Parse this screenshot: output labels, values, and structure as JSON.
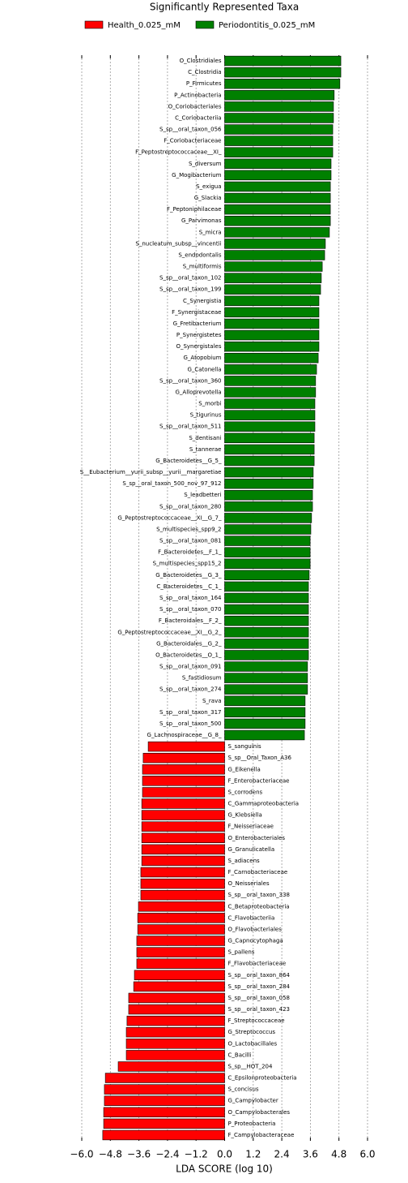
{
  "chart_data": {
    "type": "barh",
    "title": "Significantly Represented Taxa",
    "xlabel": "LDA SCORE (log 10)",
    "xlim": [
      -6,
      6
    ],
    "xticks": [
      {
        "value": -6,
        "label": "−6.0"
      },
      {
        "value": -4.8,
        "label": "−4.8"
      },
      {
        "value": -3.6,
        "label": "−3.6"
      },
      {
        "value": -2.4,
        "label": "−2.4"
      },
      {
        "value": -1.2,
        "label": "−1.2"
      },
      {
        "value": 0,
        "label": "0.0"
      },
      1.2,
      2.4,
      3.6,
      4.8,
      {
        "value": 6,
        "label": "6.0"
      }
    ],
    "grid": true,
    "categories": [
      "O_Clostridiales",
      "C_Clostridia",
      "P_Firmicutes",
      "P_Actinobacteria",
      "O_Coriobacteriales",
      "C_Coriobacteriia",
      "S_sp__oral_taxon_056",
      "F_Coriobacteriaceae",
      "F_Peptostreptococcaceae__XI_",
      "S_diversum",
      "G_Mogibacterium",
      "S_exigua",
      "G_Slackia",
      "F_Peptoniphilaceae",
      "G_Parvimonas",
      "S_micra",
      "S_nucleatum_subsp__vincentii",
      "S_endodontalis",
      "S_multiformis",
      "S_sp__oral_taxon_102",
      "S_sp__oral_taxon_199",
      "C_Synergistia",
      "F_Synergistaceae",
      "G_Fretibacterium",
      "P_Synergistetes",
      "O_Synergistales",
      "G_Atopobium",
      "G_Catonella",
      "S_sp__oral_taxon_360",
      "G_Alloprevotella",
      "S_morbi",
      "S_tigurinus",
      "S_sp__oral_taxon_511",
      "S_dentisani",
      "S_tannerae",
      "G_Bacteroidetes__G_5_",
      "S__Eubacterium__yurii_subsp__yurii__margaretiae",
      "S_sp__oral_taxon_500_nov_97_912",
      "S_leadbetteri",
      "S_sp__oral_taxon_280",
      "G_Peptostreptococcaceae__XI__G_7_",
      "S_multispecies_spp9_2",
      "S_sp__oral_taxon_081",
      "F_Bacteroidetes__F_1_",
      "S_multispecies_spp15_2",
      "G_Bacteroidetes__G_3_",
      "C_Bacteroidetes__C_1_",
      "S_sp__oral_taxon_164",
      "S_sp__oral_taxon_070",
      "F_Bacteroidales__F_2_",
      "G_Peptostreptococcaceae__XI__G_2_",
      "G_Bacteroidales__G_2_",
      "O_Bacteroidetes__O_1_",
      "S_sp__oral_taxon_091",
      "S_fastidiosum",
      "S_sp__oral_taxon_274",
      "S_rava",
      "S_sp__oral_taxon_317",
      "S_sp__oral_taxon_500",
      "G_Lachnospiraceae__G_8_",
      "S_sanguinis",
      "S_sp__Oral_Taxon_A36",
      "G_Eikenella",
      "F_Enterobacteriaceae",
      "S_corrodens",
      "C_Gammaproteobacteria",
      "G_Klebsiella",
      "F_Neisseriaceae",
      "O_Enterobacteriales",
      "G_Granulicatella",
      "S_adiacens",
      "F_Carnobacteriaceae",
      "O_Neisseriales",
      "S_sp__oral_taxon_338",
      "C_Betaproteobacteria",
      "C_Flavobacteriia",
      "O_Flavobacteriales",
      "G_Capnocytophaga",
      "S_pallens",
      "F_Flavobacteriaceae",
      "S_sp__oral_taxon_864",
      "S_sp__oral_taxon_284",
      "S_sp__oral_taxon_058",
      "S_sp__oral_taxon_423",
      "F_Streptococcaceae",
      "G_Streptococcus",
      "O_Lactobacillales",
      "C_Bacilli",
      "S_sp__HOT_204",
      "C_Epsilonproteobacteria",
      "S_concisus",
      "G_Campylobacter",
      "O_Campylobacterales",
      "P_Proteobacteria",
      "F_Campylobacteraceae"
    ],
    "series": [
      {
        "name": "Health_0.025_mM",
        "color": "#ff0000",
        "values": [
          null,
          null,
          null,
          null,
          null,
          null,
          null,
          null,
          null,
          null,
          null,
          null,
          null,
          null,
          null,
          null,
          null,
          null,
          null,
          null,
          null,
          null,
          null,
          null,
          null,
          null,
          null,
          null,
          null,
          null,
          null,
          null,
          null,
          null,
          null,
          null,
          null,
          null,
          null,
          null,
          null,
          null,
          null,
          null,
          null,
          null,
          null,
          null,
          null,
          null,
          null,
          null,
          null,
          null,
          null,
          null,
          null,
          null,
          null,
          null,
          -3.21,
          -3.42,
          -3.45,
          -3.45,
          -3.45,
          -3.48,
          -3.48,
          -3.48,
          -3.48,
          -3.48,
          -3.48,
          -3.52,
          -3.52,
          -3.52,
          -3.62,
          -3.65,
          -3.65,
          -3.69,
          -3.69,
          -3.69,
          -3.79,
          -3.82,
          -4.03,
          -4.03,
          -4.1,
          -4.13,
          -4.13,
          -4.13,
          -4.47,
          -5.01,
          -5.05,
          -5.05,
          -5.08,
          -5.08,
          -5.12
        ]
      },
      {
        "name": "Periodontitis_0.025_mM",
        "color": "#008000",
        "values": [
          4.88,
          4.88,
          4.84,
          4.6,
          4.57,
          4.57,
          4.54,
          4.54,
          4.54,
          4.47,
          4.47,
          4.44,
          4.44,
          4.44,
          4.44,
          4.4,
          4.23,
          4.2,
          4.1,
          4.06,
          4.03,
          3.96,
          3.96,
          3.96,
          3.96,
          3.96,
          3.93,
          3.86,
          3.82,
          3.82,
          3.79,
          3.79,
          3.79,
          3.76,
          3.76,
          3.76,
          3.72,
          3.72,
          3.69,
          3.69,
          3.65,
          3.62,
          3.59,
          3.59,
          3.59,
          3.55,
          3.52,
          3.52,
          3.52,
          3.52,
          3.52,
          3.52,
          3.52,
          3.48,
          3.48,
          3.48,
          3.38,
          3.38,
          3.38,
          3.35,
          null,
          null,
          null,
          null,
          null,
          null,
          null,
          null,
          null,
          null,
          null,
          null,
          null,
          null,
          null,
          null,
          null,
          null,
          null,
          null,
          null,
          null,
          null,
          null,
          null,
          null,
          null,
          null,
          null,
          null,
          null,
          null,
          null,
          null,
          null
        ]
      }
    ]
  }
}
